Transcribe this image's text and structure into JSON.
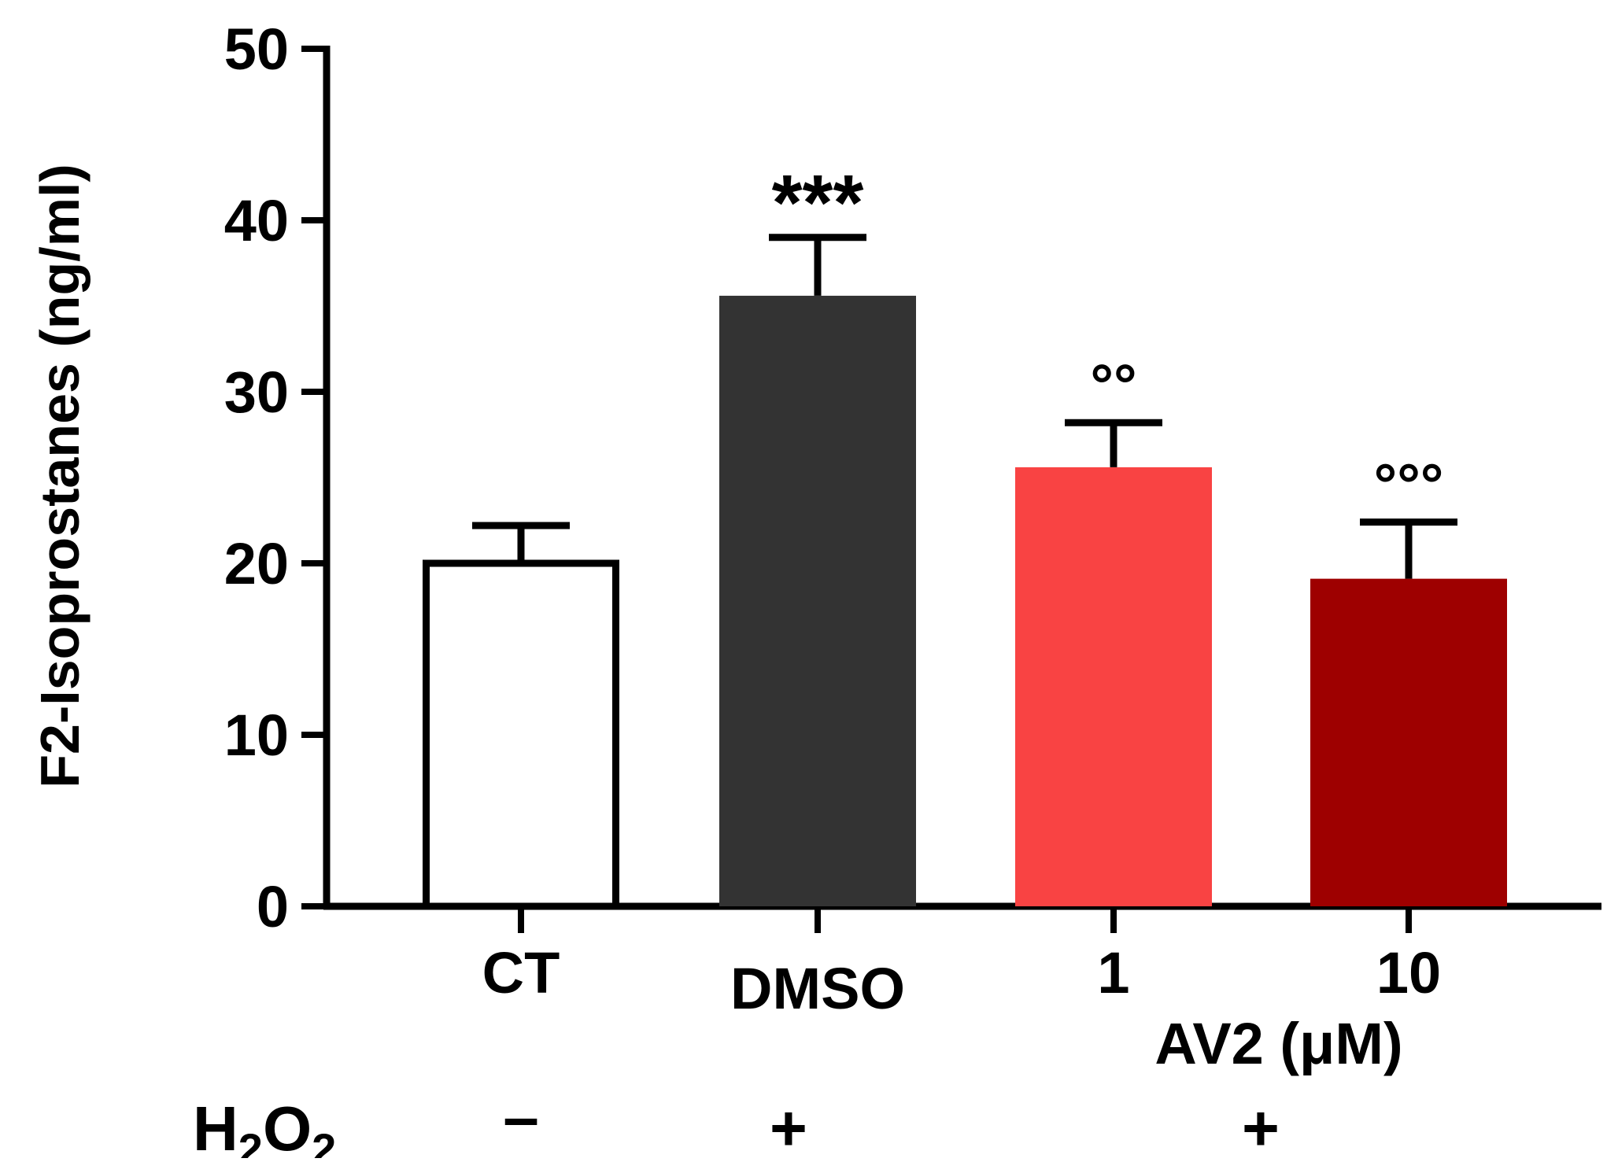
{
  "chart_data": {
    "type": "bar",
    "categories": [
      "CT",
      "DMSO",
      "1",
      "10"
    ],
    "values": [
      20.0,
      35.6,
      25.6,
      19.1
    ],
    "errors": [
      2.2,
      3.4,
      2.6,
      3.3
    ],
    "colors": [
      "#ffffff",
      "#333333",
      "#f94343",
      "#9e0000"
    ],
    "bar_outline": [
      "#000000",
      null,
      null,
      null
    ],
    "significance": [
      "",
      "***",
      "°°",
      "°°°"
    ],
    "ylabel": "F2-Isoprostanes (ng/ml)",
    "ylim": [
      0,
      50
    ],
    "yticks": [
      "0",
      "10",
      "20",
      "30",
      "40",
      "50"
    ],
    "group_label": "AV2 (μM)",
    "treatment_row": {
      "label_main": "H",
      "label_sub1": "2",
      "label_o": "O",
      "label_sub2": "2",
      "signs": [
        "–",
        "+",
        "+"
      ]
    },
    "grid": false,
    "legend": "none"
  }
}
